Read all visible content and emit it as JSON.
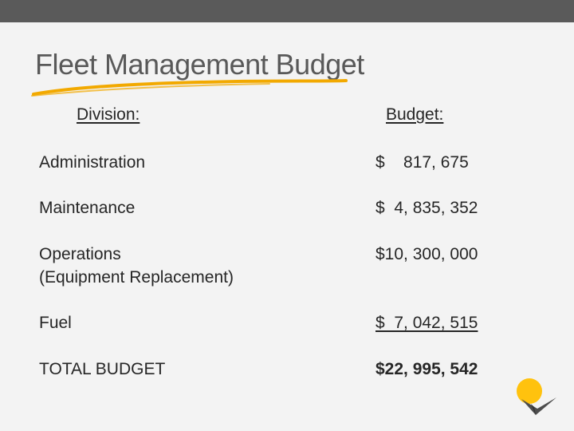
{
  "title": "Fleet Management Budget",
  "headers": {
    "division": "Division:",
    "budget": "Budget:"
  },
  "rows": [
    {
      "label": "Administration",
      "label_line2": "",
      "value": "$    817, 675"
    },
    {
      "label": "Maintenance",
      "label_line2": "",
      "value": "$  4, 835, 352"
    },
    {
      "label": "Operations",
      "label_line2": "(Equipment Replacement)",
      "value": "$10, 300, 000"
    },
    {
      "label": "Fuel",
      "label_line2": "",
      "value": "$  7, 042, 515"
    },
    {
      "label": "TOTAL BUDGET",
      "label_line2": "",
      "value": "$22, 995, 542"
    }
  ],
  "colors": {
    "top_bar": "#5a5a5a",
    "accent": "#f2a900",
    "logo_sun": "#ffc20e",
    "logo_mark": "#4d4d4d"
  },
  "icons": {
    "underline_stroke": "brush-underline",
    "logo": "sun-bird-logo"
  }
}
